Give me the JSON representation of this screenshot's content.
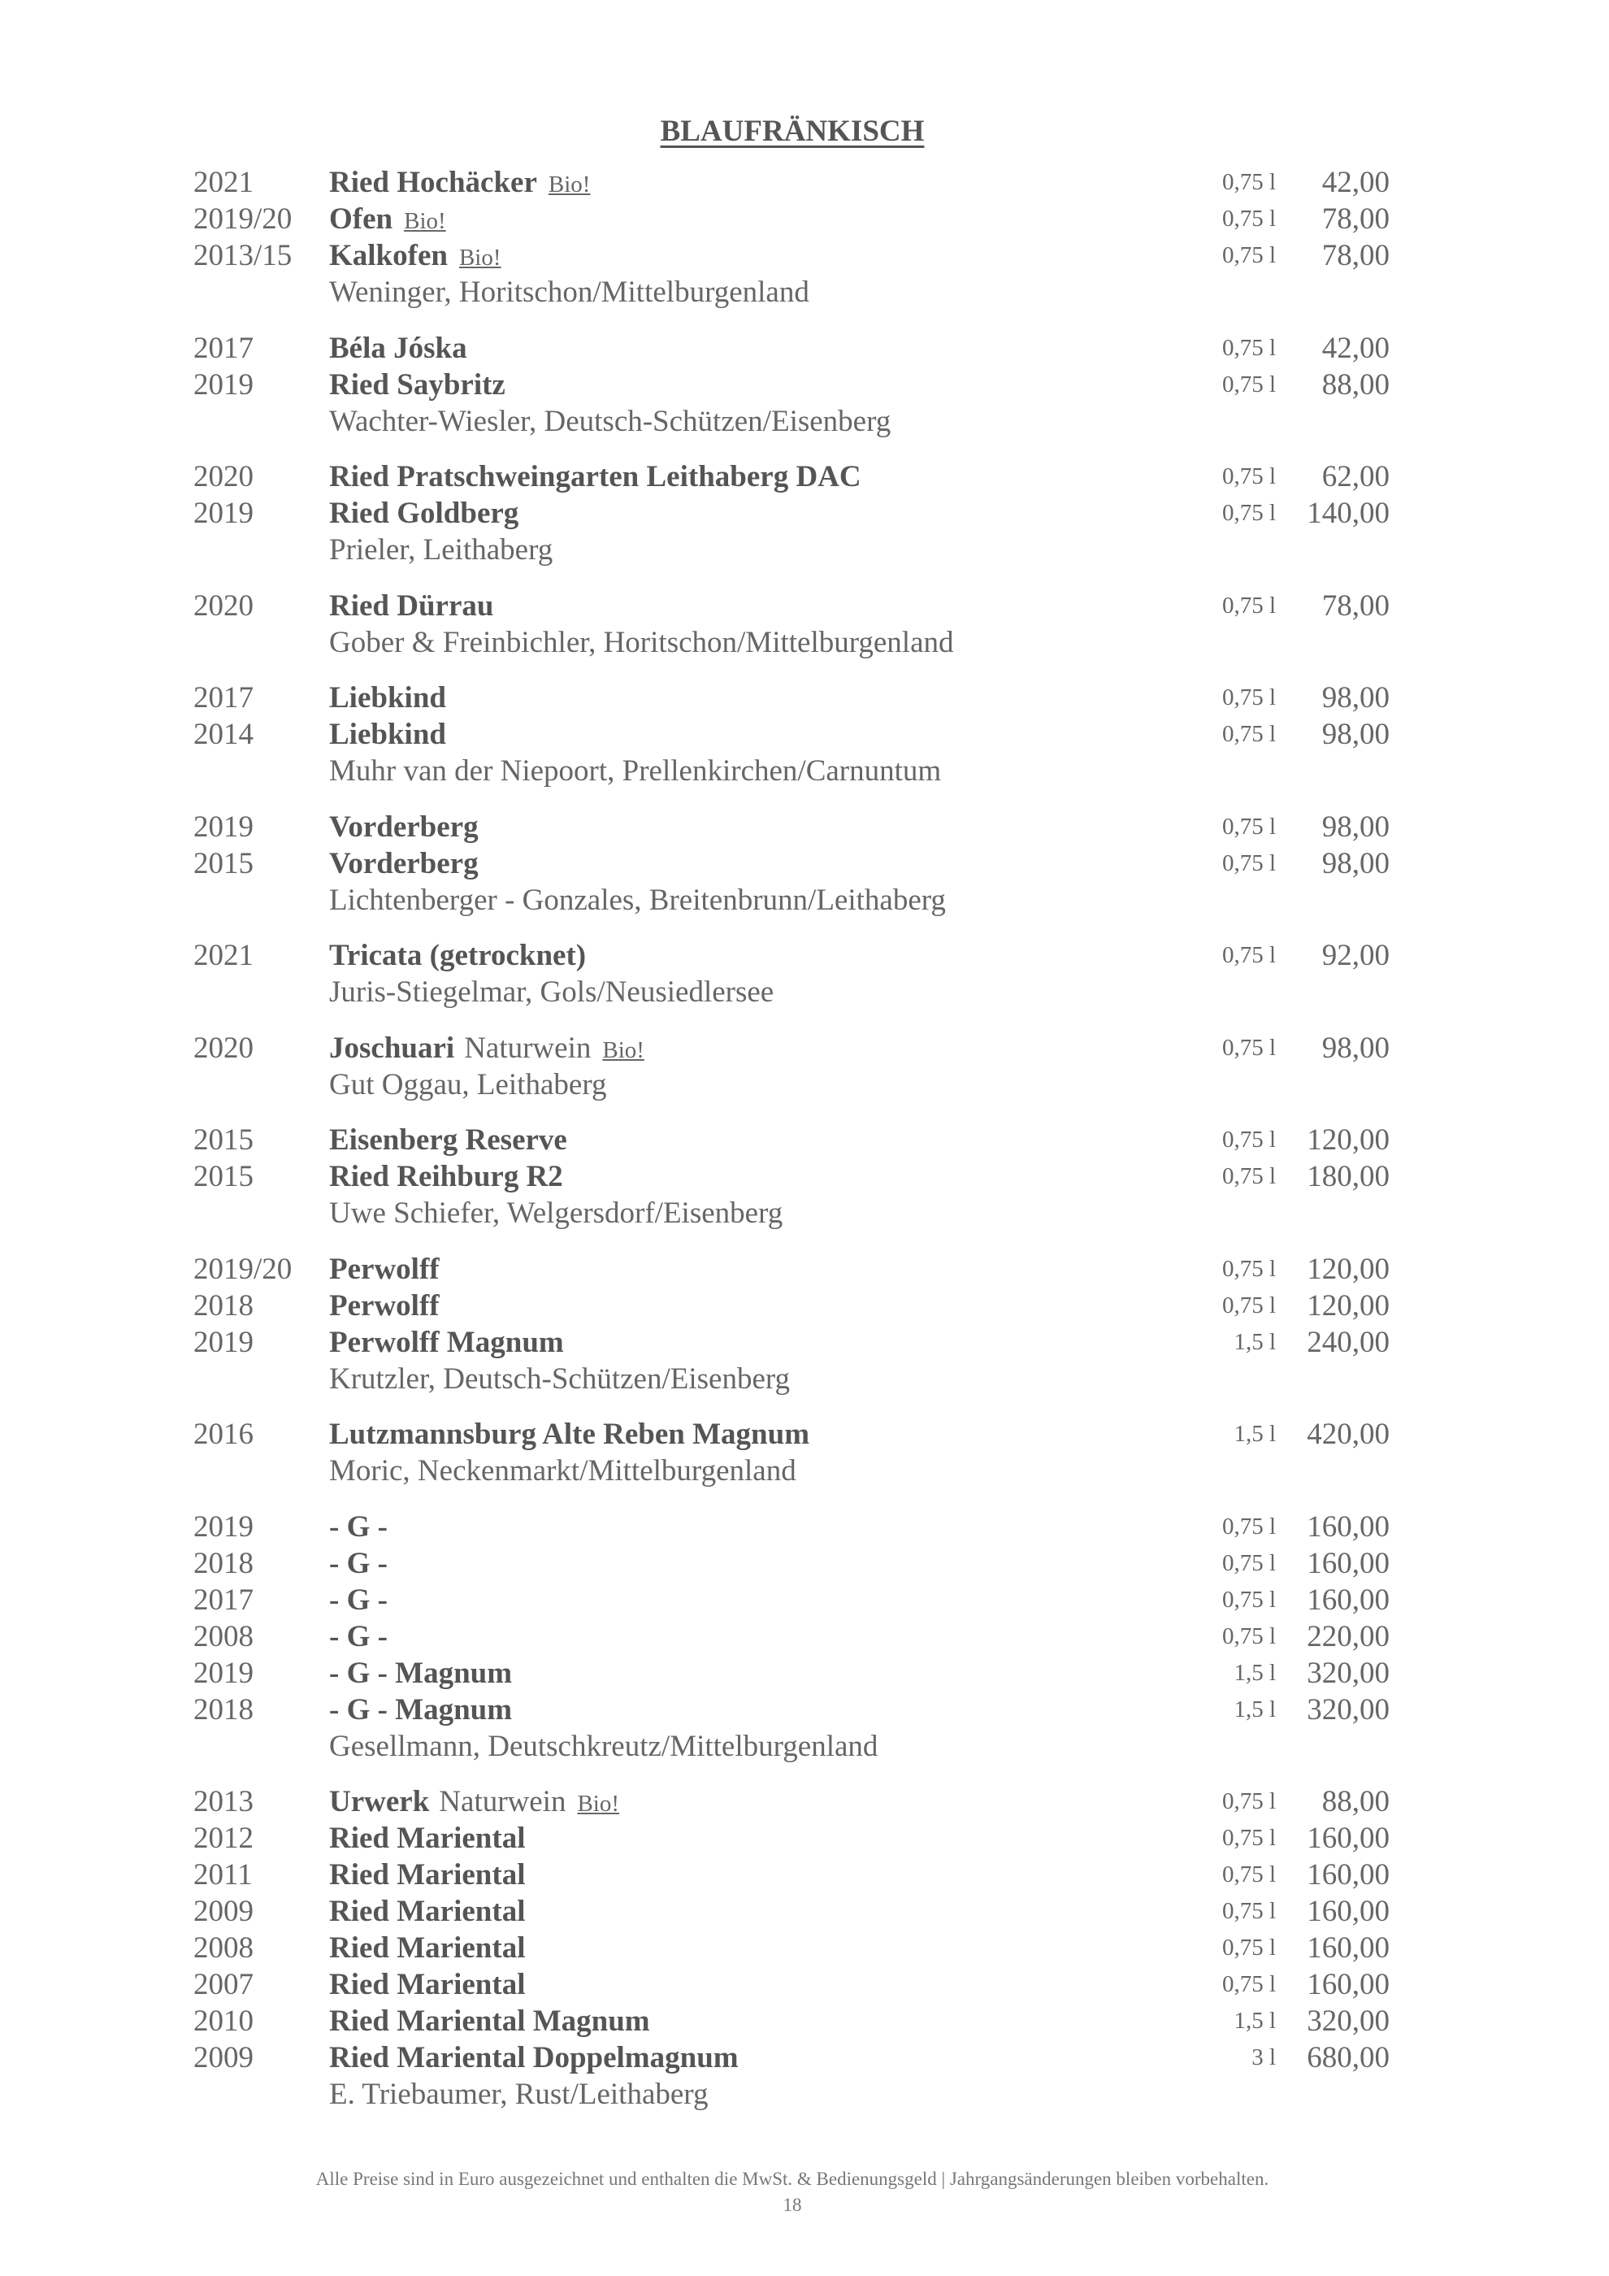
{
  "title": "BLAUFRÄNKISCH",
  "groups": [
    {
      "producer": "Weninger, Horitschon/Mittelburgenland",
      "wines": [
        {
          "year": "2021",
          "name": "Ried Hochäcker",
          "bio": "Bio!",
          "volume": "0,75 l",
          "price": "42,00"
        },
        {
          "year": "2019/20",
          "name": "Ofen",
          "bio": "Bio!",
          "volume": "0,75 l",
          "price": "78,00"
        },
        {
          "year": "2013/15",
          "name": "Kalkofen",
          "bio": "Bio!",
          "volume": "0,75 l",
          "price": "78,00"
        }
      ]
    },
    {
      "producer": "Wachter-Wiesler, Deutsch-Schützen/Eisenberg",
      "wines": [
        {
          "year": "2017",
          "name": "Béla Jóska",
          "volume": "0,75 l",
          "price": "42,00"
        },
        {
          "year": "2019",
          "name": "Ried Saybritz",
          "volume": "0,75 l",
          "price": "88,00"
        }
      ]
    },
    {
      "producer": "Prieler, Leithaberg",
      "wines": [
        {
          "year": "2020",
          "name": "Ried Pratschweingarten Leithaberg DAC",
          "volume": "0,75 l",
          "price": "62,00"
        },
        {
          "year": "2019",
          "name": "Ried Goldberg",
          "volume": "0,75 l",
          "price": "140,00"
        }
      ]
    },
    {
      "producer": "Gober & Freinbichler, Horitschon/Mittelburgenland",
      "wines": [
        {
          "year": "2020",
          "name": "Ried Dürrau",
          "volume": "0,75 l",
          "price": "78,00"
        }
      ]
    },
    {
      "producer": "Muhr van der Niepoort, Prellenkirchen/Carnuntum",
      "wines": [
        {
          "year": "2017",
          "name": "Liebkind",
          "volume": "0,75 l",
          "price": "98,00"
        },
        {
          "year": "2014",
          "name": "Liebkind",
          "volume": "0,75 l",
          "price": "98,00"
        }
      ]
    },
    {
      "producer": "Lichtenberger - Gonzales, Breitenbrunn/Leithaberg",
      "wines": [
        {
          "year": "2019",
          "name": "Vorderberg",
          "volume": "0,75 l",
          "price": "98,00"
        },
        {
          "year": "2015",
          "name": "Vorderberg",
          "volume": "0,75 l",
          "price": "98,00"
        }
      ]
    },
    {
      "producer": "Juris-Stiegelmar, Gols/Neusiedlersee",
      "wines": [
        {
          "year": "2021",
          "name": "Tricata  (getrocknet)",
          "volume": "0,75 l",
          "price": "92,00"
        }
      ]
    },
    {
      "producer": "Gut Oggau, Leithaberg",
      "wines": [
        {
          "year": "2020",
          "name": "Joschuari",
          "note": "Naturwein",
          "bio": "Bio!",
          "volume": "0,75 l",
          "price": "98,00"
        }
      ]
    },
    {
      "producer": "Uwe Schiefer, Welgersdorf/Eisenberg",
      "wines": [
        {
          "year": "2015",
          "name": "Eisenberg Reserve",
          "volume": "0,75 l",
          "price": "120,00"
        },
        {
          "year": "2015",
          "name": "Ried Reihburg R2",
          "volume": "0,75 l",
          "price": "180,00"
        }
      ]
    },
    {
      "producer": "Krutzler, Deutsch-Schützen/Eisenberg",
      "wines": [
        {
          "year": "2019/20",
          "name": "Perwolff",
          "volume": "0,75 l",
          "price": "120,00"
        },
        {
          "year": "2018",
          "name": "Perwolff",
          "volume": "0,75 l",
          "price": "120,00"
        },
        {
          "year": "2019",
          "name": "Perwolff Magnum",
          "volume": "1,5 l",
          "price": "240,00"
        }
      ]
    },
    {
      "producer": "Moric, Neckenmarkt/Mittelburgenland",
      "wines": [
        {
          "year": "2016",
          "name": "Lutzmannsburg Alte Reben Magnum",
          "volume": "1,5 l",
          "price": "420,00"
        }
      ]
    },
    {
      "producer": "Gesellmann, Deutschkreutz/Mittelburgenland",
      "wines": [
        {
          "year": "2019",
          "name": "- G -",
          "volume": "0,75 l",
          "price": "160,00"
        },
        {
          "year": "2018",
          "name": "- G -",
          "volume": "0,75 l",
          "price": "160,00"
        },
        {
          "year": "2017",
          "name": "- G -",
          "volume": "0,75 l",
          "price": "160,00"
        },
        {
          "year": "2008",
          "name": "- G -",
          "volume": "0,75 l",
          "price": "220,00"
        },
        {
          "year": "2019",
          "name": "- G - Magnum",
          "volume": "1,5 l",
          "price": "320,00"
        },
        {
          "year": "2018",
          "name": "- G - Magnum",
          "volume": "1,5 l",
          "price": "320,00"
        }
      ]
    },
    {
      "producer": "E. Triebaumer, Rust/Leithaberg",
      "wines": [
        {
          "year": "2013",
          "name": "Urwerk",
          "note": "Naturwein",
          "bio": "Bio!",
          "volume": "0,75 l",
          "price": "88,00"
        },
        {
          "year": "2012",
          "name": "Ried Mariental",
          "volume": "0,75 l",
          "price": "160,00"
        },
        {
          "year": "2011",
          "name": "Ried Mariental",
          "volume": "0,75 l",
          "price": "160,00"
        },
        {
          "year": "2009",
          "name": "Ried Mariental",
          "volume": "0,75 l",
          "price": "160,00"
        },
        {
          "year": "2008",
          "name": "Ried Mariental",
          "volume": "0,75 l",
          "price": "160,00"
        },
        {
          "year": "2007",
          "name": "Ried Mariental",
          "volume": "0,75 l",
          "price": "160,00"
        },
        {
          "year": "2010",
          "name": "Ried Mariental Magnum",
          "volume": "1,5 l",
          "price": "320,00"
        },
        {
          "year": "2009",
          "name": "Ried Mariental Doppelmagnum",
          "volume": "3 l",
          "price": "680,00"
        }
      ]
    }
  ],
  "footer": {
    "note": "Alle Preise sind in Euro ausgezeichnet und enthalten die MwSt. & Bedienungsgeld   |   Jahrgangsänderungen bleiben vorbehalten.",
    "page_number": "18"
  }
}
